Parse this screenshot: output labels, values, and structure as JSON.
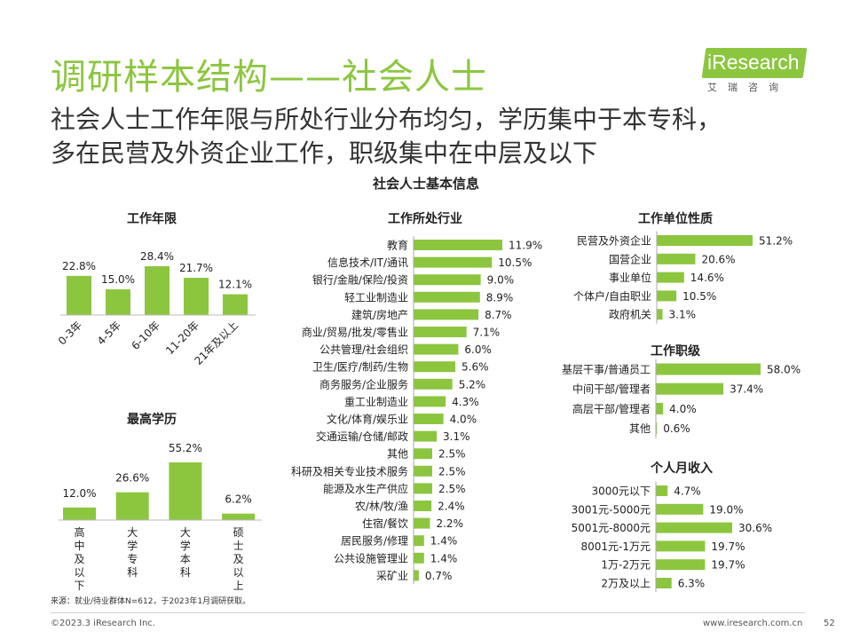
{
  "header": {
    "title": "调研样本结构——社会人士",
    "subtitle_line1": "社会人士工作年限与所处行业分布均匀，学历集中于本专科，",
    "subtitle_line2": "多在民营及外资企业工作，职级集中在中层及以下",
    "logo_text": "iResearch",
    "logo_sub": "艾瑞咨询"
  },
  "main_title": "社会人士基本信息",
  "footnote": "来源：就业/待业群体N=612，于2023年1月调研获取。",
  "footer": {
    "copyright": "©2023.3 iResearch Inc.",
    "website": "www.iresearch.com.cn",
    "page": "52"
  },
  "colors": {
    "bar": "#8cc63f",
    "title": "#8cc63f"
  },
  "chart_data": [
    {
      "id": "work_years",
      "type": "bar",
      "title": "工作年限",
      "categories": [
        "0-3年",
        "4-5年",
        "6-10年",
        "11-20年",
        "21年及以上"
      ],
      "values": [
        22.8,
        15.0,
        28.4,
        21.7,
        12.1
      ],
      "labels": [
        "22.8%",
        "15.0%",
        "28.4%",
        "21.7%",
        "12.1%"
      ]
    },
    {
      "id": "education",
      "type": "bar",
      "title": "最高学历",
      "categories": [
        "高中及以下",
        "大学专科",
        "大学本科",
        "硕士及以上"
      ],
      "values": [
        12.0,
        26.6,
        55.2,
        6.2
      ],
      "labels": [
        "12.0%",
        "26.6%",
        "55.2%",
        "6.2%"
      ]
    },
    {
      "id": "industry",
      "type": "bar",
      "orientation": "horizontal",
      "title": "工作所处行业",
      "categories": [
        "教育",
        "信息技术/IT/通讯",
        "银行/金融/保险/投资",
        "轻工业制造业",
        "建筑/房地产",
        "商业/贸易/批发/零售业",
        "公共管理/社会组织",
        "卫生/医疗/制药/生物",
        "商务服务/企业服务",
        "重工业制造业",
        "文化/体育/娱乐业",
        "交通运输/仓储/邮政",
        "其他",
        "科研及相关专业技术服务",
        "能源及水生产供应",
        "农/林/牧/渔",
        "住宿/餐饮",
        "居民服务/修理",
        "公共设施管理业",
        "采矿业"
      ],
      "values": [
        11.9,
        10.5,
        9.0,
        8.9,
        8.7,
        7.1,
        6.0,
        5.6,
        5.2,
        4.3,
        4.0,
        3.1,
        2.5,
        2.5,
        2.5,
        2.4,
        2.2,
        1.4,
        1.4,
        0.7
      ],
      "labels": [
        "11.9%",
        "10.5%",
        "9.0%",
        "8.9%",
        "8.7%",
        "7.1%",
        "6.0%",
        "5.6%",
        "5.2%",
        "4.3%",
        "4.0%",
        "3.1%",
        "2.5%",
        "2.5%",
        "2.5%",
        "2.4%",
        "2.2%",
        "1.4%",
        "1.4%",
        "0.7%"
      ]
    },
    {
      "id": "employer_type",
      "type": "bar",
      "orientation": "horizontal",
      "title": "工作单位性质",
      "categories": [
        "民营及外资企业",
        "国营企业",
        "事业单位",
        "个体户/自由职业",
        "政府机关"
      ],
      "values": [
        51.2,
        20.6,
        14.6,
        10.5,
        3.1
      ],
      "labels": [
        "51.2%",
        "20.6%",
        "14.6%",
        "10.5%",
        "3.1%"
      ]
    },
    {
      "id": "job_level",
      "type": "bar",
      "orientation": "horizontal",
      "title": "工作职级",
      "categories": [
        "基层干事/普通员工",
        "中间干部/管理者",
        "高层干部/管理者",
        "其他"
      ],
      "values": [
        58.0,
        37.4,
        4.0,
        0.6
      ],
      "labels": [
        "58.0%",
        "37.4%",
        "4.0%",
        "0.6%"
      ]
    },
    {
      "id": "monthly_income",
      "type": "bar",
      "orientation": "horizontal",
      "title": "个人月收入",
      "categories": [
        "3000元以下",
        "3001元-5000元",
        "5001元-8000元",
        "8001元-1万元",
        "1万-2万元",
        "2万及以上"
      ],
      "values": [
        4.7,
        19.0,
        30.6,
        19.7,
        19.7,
        6.3
      ],
      "labels": [
        "4.7%",
        "19.0%",
        "30.6%",
        "19.7%",
        "19.7%",
        "6.3%"
      ]
    }
  ]
}
